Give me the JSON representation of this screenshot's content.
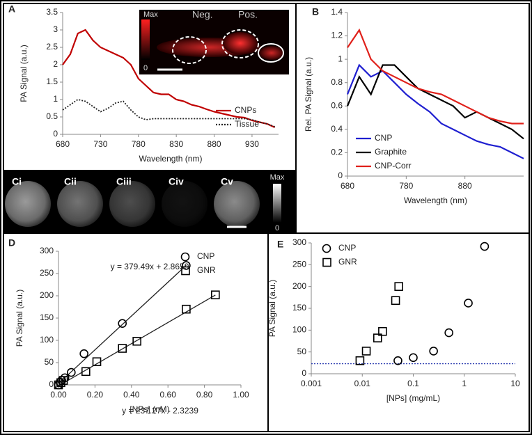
{
  "chart_data": [
    {
      "type": "line",
      "panel": "A",
      "x_label": "Wavelength (nm)",
      "y_label": "PA Signal (a.u.)",
      "x": [
        680,
        690,
        700,
        710,
        720,
        730,
        740,
        750,
        760,
        770,
        780,
        790,
        800,
        810,
        820,
        830,
        840,
        850,
        860,
        870,
        880,
        890,
        900,
        910,
        920,
        930,
        940,
        950,
        960
      ],
      "series": [
        {
          "name": "CNPs",
          "color": "#c00000",
          "line": "solid",
          "values": [
            2.0,
            2.3,
            2.9,
            3.0,
            2.7,
            2.5,
            2.4,
            2.3,
            2.2,
            2.0,
            1.6,
            1.4,
            1.2,
            1.15,
            1.15,
            1.0,
            0.95,
            0.85,
            0.8,
            0.72,
            0.65,
            0.6,
            0.55,
            0.5,
            0.48,
            0.4,
            0.35,
            0.3,
            0.2
          ]
        },
        {
          "name": "Tissue",
          "color": "#222222",
          "line": "dotted",
          "values": [
            0.7,
            0.85,
            1.0,
            0.95,
            0.8,
            0.65,
            0.75,
            0.9,
            0.95,
            0.7,
            0.5,
            0.42,
            0.45,
            0.45,
            0.45,
            0.45,
            0.45,
            0.45,
            0.45,
            0.45,
            0.45,
            0.45,
            0.45,
            0.45,
            0.45,
            0.42,
            0.35,
            0.3,
            0.22
          ]
        }
      ],
      "xlim": [
        680,
        965
      ],
      "xticks": [
        680,
        730,
        780,
        830,
        880,
        930
      ],
      "ylim": [
        0,
        3.5
      ],
      "yticks": [
        0,
        0.5,
        1,
        1.5,
        2,
        2.5,
        3,
        3.5
      ],
      "legend": "lower right",
      "inset_labels": [
        "Max",
        "0",
        "Neg.",
        "Pos."
      ]
    },
    {
      "type": "line",
      "panel": "B",
      "x_label": "Wavelength (nm)",
      "y_label": "Rel. PA Signal (a.u.)",
      "x": [
        680,
        700,
        720,
        740,
        760,
        780,
        800,
        820,
        840,
        860,
        880,
        900,
        920,
        940,
        960,
        980
      ],
      "series": [
        {
          "name": "CNP",
          "color": "#1f1fd0",
          "line": "solid",
          "values": [
            0.7,
            0.95,
            0.85,
            0.9,
            0.8,
            0.7,
            0.62,
            0.55,
            0.45,
            0.4,
            0.35,
            0.3,
            0.27,
            0.25,
            0.2,
            0.15
          ]
        },
        {
          "name": "Graphite",
          "color": "#000000",
          "line": "solid",
          "values": [
            0.6,
            0.85,
            0.7,
            0.95,
            0.95,
            0.85,
            0.75,
            0.7,
            0.65,
            0.6,
            0.5,
            0.55,
            0.5,
            0.45,
            0.4,
            0.32
          ]
        },
        {
          "name": "CNP-Corr",
          "color": "#e0201a",
          "line": "solid",
          "values": [
            1.1,
            1.25,
            1.0,
            0.9,
            0.85,
            0.8,
            0.75,
            0.72,
            0.7,
            0.65,
            0.6,
            0.55,
            0.5,
            0.47,
            0.45,
            0.45
          ]
        }
      ],
      "xlim": [
        680,
        980
      ],
      "xticks": [
        680,
        780,
        880
      ],
      "ylim": [
        0,
        1.4
      ],
      "yticks": [
        0,
        0.2,
        0.4,
        0.6,
        0.8,
        1,
        1.2,
        1.4
      ],
      "legend": "lower left"
    },
    {
      "type": "image-strip",
      "panel": "C",
      "panels": [
        "Ci",
        "Cii",
        "Ciii",
        "Civ",
        "Cv"
      ],
      "colorbar": [
        "Max",
        "0"
      ]
    },
    {
      "type": "scatter",
      "panel": "D",
      "x_label": "[NPs] (nM)",
      "y_label": "PA Signal (a.u.)",
      "series": [
        {
          "name": "CNP",
          "marker": "circle",
          "color": "#000000",
          "x": [
            0,
            0.0088,
            0.0176,
            0.035,
            0.07,
            0.14,
            0.35,
            0.7
          ],
          "values": [
            0,
            6,
            10,
            16,
            28,
            70,
            138,
            268
          ]
        },
        {
          "name": "GNR",
          "marker": "square",
          "color": "#000000",
          "x": [
            0,
            0.013,
            0.027,
            0.15,
            0.21,
            0.35,
            0.43,
            0.7,
            0.86
          ],
          "values": [
            0,
            5,
            10,
            30,
            52,
            82,
            98,
            170,
            202
          ]
        }
      ],
      "trendlines": [
        {
          "x": [
            0,
            0.7
          ],
          "values": [
            2.87,
            268.5
          ]
        },
        {
          "x": [
            0,
            0.86
          ],
          "values": [
            -2.3,
            201.7
          ]
        }
      ],
      "annotations": [
        "y = 379.49x + 2.8659",
        "y = 237.27x - 2.3239"
      ],
      "xlim": [
        0,
        1
      ],
      "xticks": [
        {
          "value": 0,
          "label": "0.00"
        },
        {
          "value": 0.2,
          "label": "0.20"
        },
        {
          "value": 0.4,
          "label": "0.40"
        },
        {
          "value": 0.6,
          "label": "0.60"
        },
        {
          "value": 0.8,
          "label": "0.80"
        },
        {
          "value": 1,
          "label": "1.00"
        }
      ],
      "ylim": [
        0,
        300
      ],
      "yticks": [
        0,
        50,
        100,
        150,
        200,
        250,
        300
      ],
      "legend": "upper right"
    },
    {
      "type": "scatter",
      "panel": "E",
      "x_label": "[NPs] (mg/mL)",
      "y_label": "PA Signal (a.u.)",
      "xscale": "log",
      "series": [
        {
          "name": "CNP",
          "marker": "circle",
          "color": "#000000",
          "x": [
            0.05,
            0.1,
            0.25,
            0.5,
            1.2,
            2.5
          ],
          "values": [
            30,
            37,
            52,
            94,
            162,
            292
          ]
        },
        {
          "name": "GNR",
          "marker": "square",
          "color": "#000000",
          "x": [
            0.009,
            0.012,
            0.02,
            0.025,
            0.045,
            0.052
          ],
          "values": [
            30,
            52,
            82,
            97,
            168,
            200
          ]
        }
      ],
      "hlines": [
        {
          "y": 23,
          "color": "#2b3bb0"
        }
      ],
      "xlim": [
        0.001,
        10
      ],
      "xticks": [
        0.001,
        0.01,
        0.1,
        1,
        10
      ],
      "ylim": [
        0,
        300
      ],
      "yticks": [
        0,
        50,
        100,
        150,
        200,
        250,
        300
      ],
      "legend": "upper left"
    }
  ]
}
